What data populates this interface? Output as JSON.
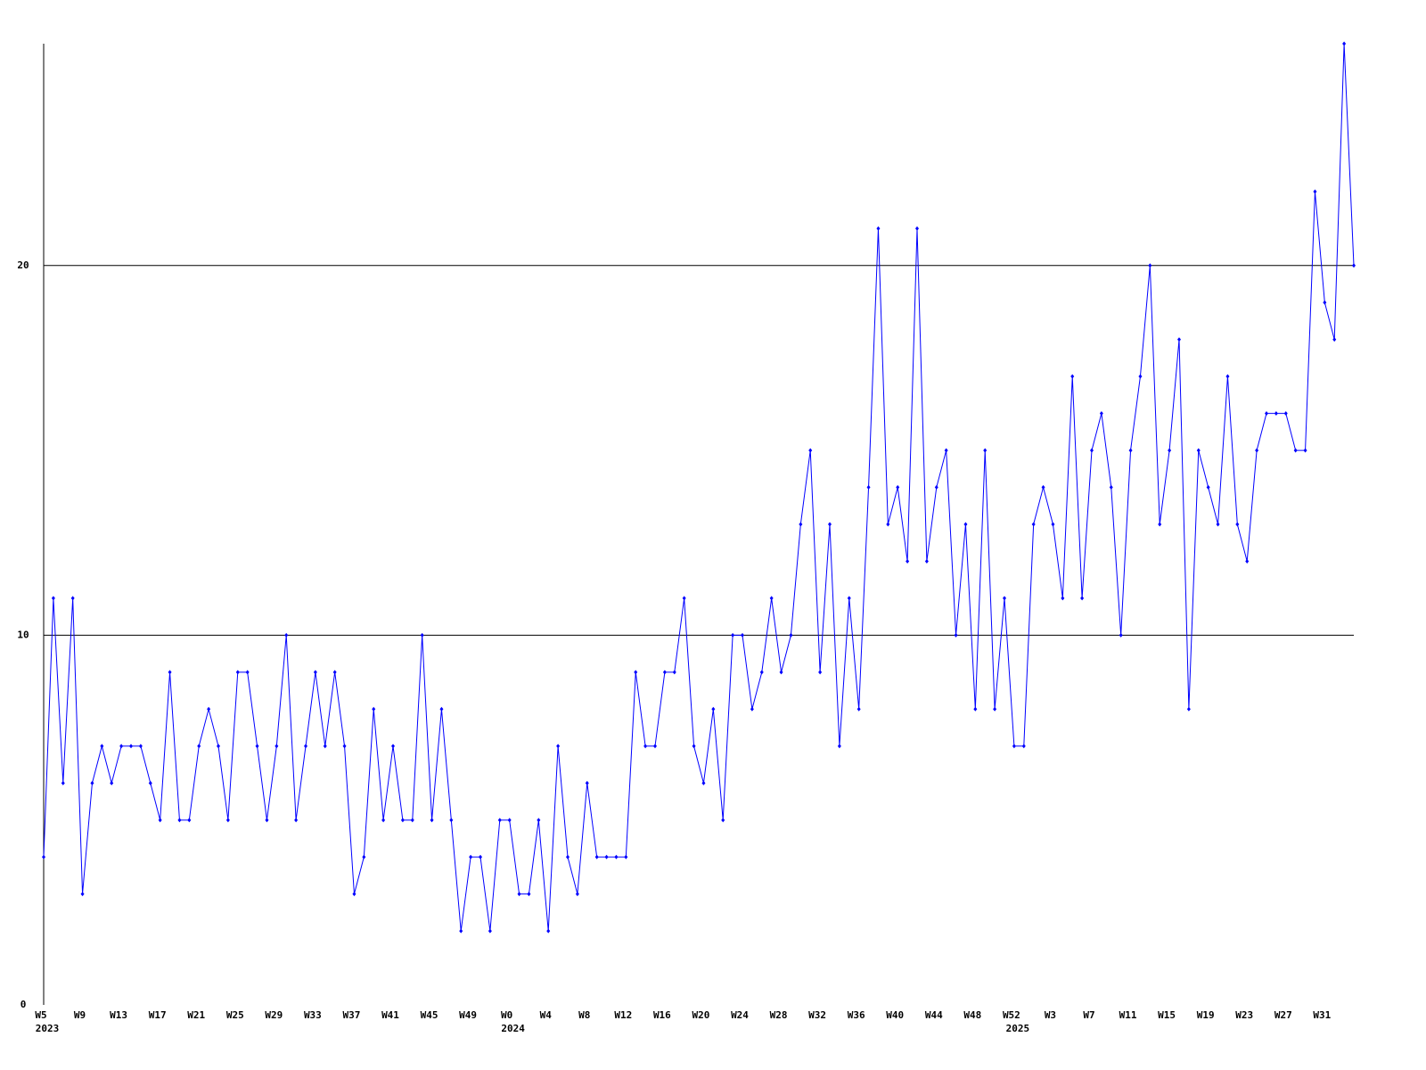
{
  "chart_data": {
    "type": "line",
    "categories": [
      "W5",
      null,
      null,
      null,
      "W9",
      null,
      null,
      null,
      "W13",
      null,
      null,
      null,
      "W17",
      null,
      null,
      null,
      "W21",
      null,
      null,
      null,
      "W25",
      null,
      null,
      null,
      "W29",
      null,
      null,
      null,
      "W33",
      null,
      null,
      null,
      "W37",
      null,
      null,
      null,
      "W41",
      null,
      null,
      null,
      "W45",
      null,
      null,
      null,
      "W49",
      null,
      null,
      null,
      "W0",
      null,
      null,
      null,
      "W4",
      null,
      null,
      null,
      "W8",
      null,
      null,
      null,
      "W12",
      null,
      null,
      null,
      "W16",
      null,
      null,
      null,
      "W20",
      null,
      null,
      null,
      "W24",
      null,
      null,
      null,
      "W28",
      null,
      null,
      null,
      "W32",
      null,
      null,
      null,
      "W36",
      null,
      null,
      null,
      "W40",
      null,
      null,
      null,
      "W44",
      null,
      null,
      null,
      "W48",
      null,
      null,
      null,
      "W52",
      null,
      null,
      null,
      "W3",
      null,
      null,
      null,
      "W7",
      null,
      null,
      null,
      "W11",
      null,
      null,
      null,
      "W15",
      null,
      null,
      null,
      "W19",
      null,
      null,
      null,
      "W23",
      null,
      null,
      null,
      "W27",
      null,
      null,
      null,
      "W31",
      null,
      null,
      null
    ],
    "year_labels": [
      {
        "category": "W5",
        "label": "2023"
      },
      {
        "category": "W0",
        "label": "2024"
      },
      {
        "category": "W52",
        "label": "2025"
      }
    ],
    "series": [
      {
        "color": "#0000ff",
        "values": [
          4,
          11,
          6,
          11,
          3,
          6,
          7,
          6,
          7,
          7,
          7,
          6,
          5,
          9,
          5,
          5,
          7,
          8,
          7,
          5,
          9,
          9,
          7,
          5,
          7,
          10,
          5,
          7,
          9,
          7,
          9,
          7,
          3,
          4,
          8,
          5,
          7,
          5,
          5,
          10,
          5,
          8,
          5,
          2,
          4,
          4,
          2,
          5,
          5,
          3,
          3,
          5,
          2,
          7,
          4,
          3,
          6,
          4,
          4,
          4,
          4,
          9,
          7,
          7,
          9,
          9,
          11,
          7,
          6,
          8,
          5,
          10,
          10,
          8,
          9,
          11,
          9,
          10,
          13,
          15,
          9,
          13,
          7,
          11,
          8,
          14,
          21,
          13,
          14,
          12,
          21,
          12,
          14,
          15,
          10,
          13,
          8,
          15,
          8,
          11,
          7,
          7,
          13,
          14,
          13,
          11,
          17,
          11,
          15,
          16,
          14,
          10,
          15,
          17,
          20,
          13,
          15,
          18,
          8,
          15,
          14,
          13,
          17,
          13,
          12,
          15,
          16,
          16,
          16,
          15,
          15,
          22,
          19,
          18,
          26,
          20
        ]
      }
    ],
    "ylim": [
      0,
      26
    ],
    "yticks": [
      0,
      10,
      20
    ],
    "grid": true
  }
}
